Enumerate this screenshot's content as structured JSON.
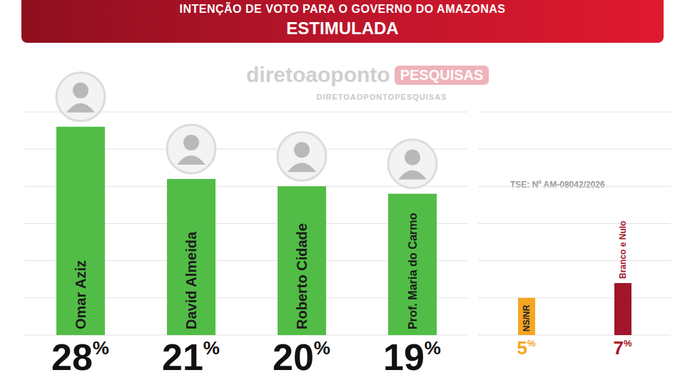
{
  "header": {
    "title": "INTENÇÃO DE VOTO PARA O GOVERNO DO AMAZONAS",
    "subtitle": "ESTIMULADA"
  },
  "watermark": {
    "brand": "diretoaoponto",
    "tag": "PESQUISAS",
    "url": "DIRETOAOPONTOPESQUISAS"
  },
  "note": "TSE: Nº AM-08042/2026",
  "chart_data": [
    {
      "type": "bar",
      "categories": [
        "Omar Aziz",
        "David Almeida",
        "Roberto Cidade",
        "Prof. Maria do Carmo"
      ],
      "values": [
        28,
        21,
        20,
        19
      ],
      "value_labels": [
        "28%",
        "21%",
        "20%",
        "19%"
      ],
      "color": "#52bd46",
      "ylim": [
        0,
        30
      ],
      "yticks": [
        0,
        5,
        10,
        15,
        20,
        25,
        30
      ],
      "grid": true,
      "data_labels": true,
      "tick_labels": false
    },
    {
      "type": "bar",
      "categories": [
        "NS/NR",
        "Branco e Nulo"
      ],
      "values": [
        5,
        7
      ],
      "value_labels": [
        "5%",
        "7%"
      ],
      "colors": [
        "#f5a623",
        "#a3152a"
      ],
      "ylim": [
        0,
        30
      ],
      "yticks": [
        0,
        5,
        10,
        15,
        20,
        25,
        30
      ],
      "grid": true,
      "data_labels": true,
      "tick_labels": false
    }
  ]
}
